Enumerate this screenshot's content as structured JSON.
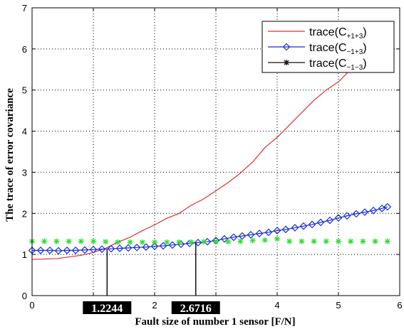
{
  "chart_data": {
    "type": "line",
    "title": "",
    "xlabel": "Fault size of number 1 sensor [F/N]",
    "ylabel": "The trace of error covariance",
    "xlim": [
      0,
      6
    ],
    "ylim": [
      0,
      7
    ],
    "xticks": [
      0,
      1,
      2,
      3,
      4,
      5,
      6
    ],
    "yticks": [
      0,
      1,
      2,
      3,
      4,
      5,
      6,
      7
    ],
    "grid": true,
    "legend_position": "top-right",
    "series": [
      {
        "name": "trace(C+1+3)",
        "label_main": "trace(C",
        "label_sub": "+1+3",
        "color": "#e03030",
        "marker": "none",
        "x": [
          0,
          0.4,
          0.8,
          1.0,
          1.2,
          1.4,
          1.6,
          1.8,
          2.0,
          2.2,
          2.4,
          2.6,
          2.8,
          3.0,
          3.2,
          3.4,
          3.6,
          3.8,
          4.0,
          4.2,
          4.4,
          4.6,
          4.8,
          5.0,
          5.2
        ],
        "y": [
          0.88,
          0.9,
          0.98,
          1.05,
          1.15,
          1.3,
          1.42,
          1.58,
          1.72,
          1.88,
          2.0,
          2.2,
          2.35,
          2.55,
          2.75,
          2.98,
          3.25,
          3.6,
          3.85,
          4.15,
          4.45,
          4.75,
          5.0,
          5.2,
          5.5
        ]
      },
      {
        "name": "trace(C-1+3)",
        "label_main": "trace(C",
        "label_sub": "−1+3",
        "color": "#1a2ed8",
        "marker": "diamond",
        "x": [
          0,
          0.14,
          0.29,
          0.43,
          0.57,
          0.71,
          0.86,
          1.0,
          1.14,
          1.29,
          1.43,
          1.57,
          1.71,
          1.86,
          2.0,
          2.14,
          2.29,
          2.43,
          2.57,
          2.71,
          2.86,
          3.0,
          3.14,
          3.29,
          3.43,
          3.57,
          3.71,
          3.86,
          4.0,
          4.14,
          4.29,
          4.43,
          4.57,
          4.71,
          4.86,
          5.0,
          5.14,
          5.29,
          5.43,
          5.57,
          5.71,
          5.8
        ],
        "y": [
          1.1,
          1.1,
          1.1,
          1.09,
          1.1,
          1.1,
          1.11,
          1.12,
          1.13,
          1.14,
          1.15,
          1.16,
          1.17,
          1.18,
          1.2,
          1.21,
          1.23,
          1.25,
          1.27,
          1.29,
          1.31,
          1.34,
          1.38,
          1.42,
          1.45,
          1.48,
          1.51,
          1.54,
          1.58,
          1.61,
          1.65,
          1.69,
          1.73,
          1.78,
          1.83,
          1.89,
          1.94,
          1.99,
          2.03,
          2.07,
          2.12,
          2.16
        ]
      },
      {
        "name": "trace(C-1-3)",
        "label_main": "trace(C",
        "label_sub": "−1−3",
        "color": "#111111",
        "marker": "star",
        "x": [
          1.2244,
          1.2244,
          2.6716,
          2.6716
        ],
        "y": [
          0,
          1.12,
          1.3,
          0
        ],
        "legend_only_style": true
      },
      {
        "name": "",
        "color": "#33dd33",
        "marker": "star",
        "x": [
          0,
          0.2,
          0.4,
          0.6,
          0.8,
          1.0,
          1.2,
          1.4,
          1.6,
          1.8,
          2.0,
          2.2,
          2.4,
          2.6,
          2.8,
          3.0,
          3.2,
          3.4,
          3.6,
          3.8,
          4.0,
          4.2,
          4.4,
          4.6,
          4.8,
          5.0,
          5.2,
          5.4,
          5.6,
          5.8
        ],
        "y": [
          1.32,
          1.32,
          1.32,
          1.32,
          1.32,
          1.32,
          1.31,
          1.3,
          1.3,
          1.3,
          1.3,
          1.3,
          1.3,
          1.3,
          1.31,
          1.31,
          1.31,
          1.32,
          1.34,
          1.35,
          1.38,
          1.32,
          1.32,
          1.32,
          1.32,
          1.32,
          1.32,
          1.32,
          1.32,
          1.32
        ]
      }
    ],
    "annotations": [
      {
        "x": 1.2244,
        "text": "1.2244"
      },
      {
        "x": 2.6716,
        "text": "2.6716"
      }
    ]
  }
}
